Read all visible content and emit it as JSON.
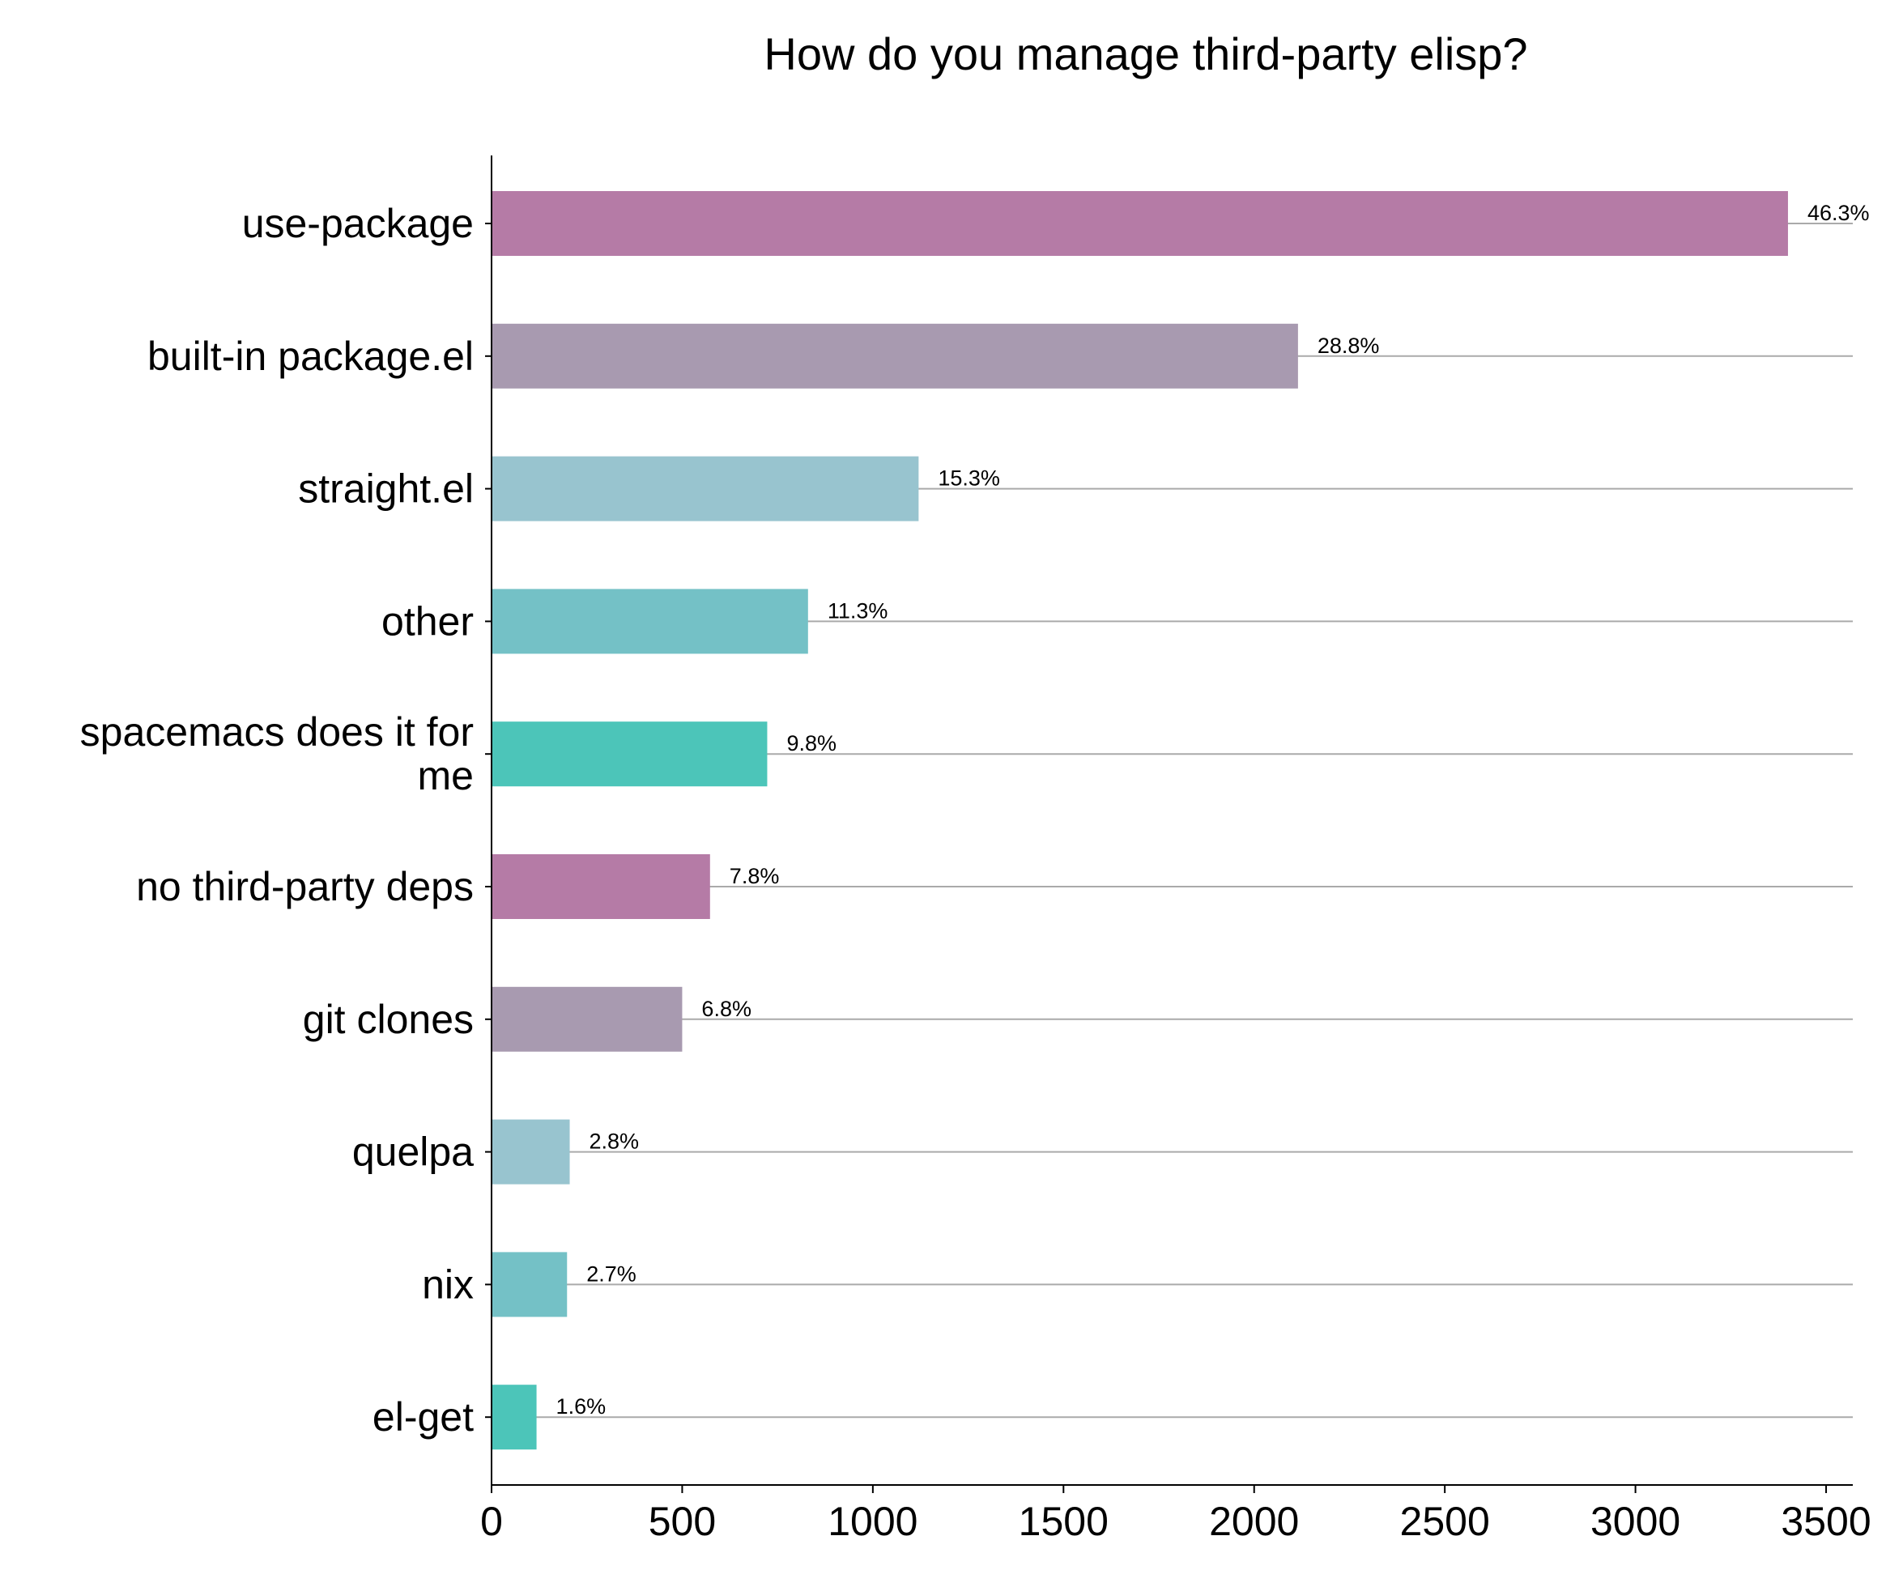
{
  "chart_data": {
    "type": "bar",
    "orientation": "horizontal",
    "title": "How do you manage third-party elisp?",
    "xlabel": "",
    "ylabel": "",
    "xlim": [
      0,
      3570
    ],
    "xticks": [
      0,
      500,
      1000,
      1500,
      2000,
      2500,
      3000,
      3500
    ],
    "xtick_labels": [
      "0",
      "500",
      "1000",
      "1500",
      "2000",
      "2500",
      "3000",
      "3500"
    ],
    "grid": "horizontal lines at each category",
    "categories": [
      "use-package",
      "built-in package.el",
      "straight.el",
      "other",
      "spacemacs does it for me",
      "no third-party deps",
      "git clones",
      "quelpa",
      "nix",
      "el-get"
    ],
    "category_lines": [
      [
        "use-package"
      ],
      [
        "built-in package.el"
      ],
      [
        "straight.el"
      ],
      [
        "other"
      ],
      [
        "spacemacs does it for",
        "me"
      ],
      [
        "no third-party deps"
      ],
      [
        "git clones"
      ],
      [
        "quelpa"
      ],
      [
        "nix"
      ],
      [
        "el-get"
      ]
    ],
    "values": [
      3400,
      2115,
      1120,
      830,
      723,
      573,
      500,
      205,
      198,
      118
    ],
    "data_labels": [
      "46.3%",
      "28.8%",
      "15.3%",
      "11.3%",
      "9.8%",
      "7.8%",
      "6.8%",
      "2.8%",
      "2.7%",
      "1.6%"
    ],
    "colors": [
      "#b57ba6",
      "#a89ab0",
      "#98c4cf",
      "#74c1c6",
      "#4cc5b9",
      "#b57ba6",
      "#a89ab0",
      "#98c4cf",
      "#74c1c6",
      "#4cc5b9"
    ],
    "gridline_color": "#aaaaaa"
  }
}
